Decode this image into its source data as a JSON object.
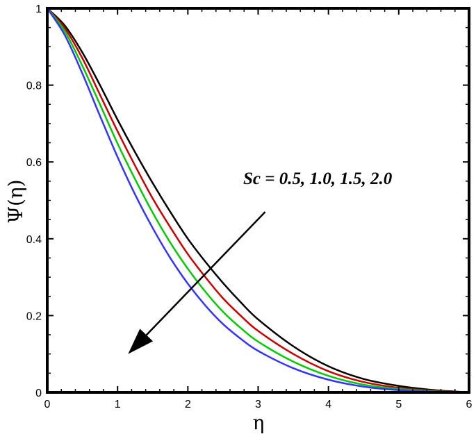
{
  "chart_data": {
    "type": "line",
    "xlabel": "η",
    "ylabel": "Ψ(η)",
    "xlim": [
      0,
      6
    ],
    "ylim": [
      0,
      1
    ],
    "xticks": [
      0,
      1,
      2,
      3,
      4,
      5,
      6
    ],
    "yticks": [
      0,
      0.2,
      0.4,
      0.6,
      0.8,
      1
    ],
    "ytick_labels": [
      "0",
      "0.2",
      "0.4",
      "0.6",
      "0.8",
      "1"
    ],
    "grid": false,
    "annotation": {
      "text": "Sc = 0.5, 1.0, 1.5, 2.0",
      "arrow_from": [
        3.1,
        0.47
      ],
      "arrow_to": [
        1.15,
        0.1
      ]
    },
    "x": [
      0,
      0.25,
      0.5,
      0.75,
      1.0,
      1.25,
      1.5,
      1.75,
      2.0,
      2.25,
      2.5,
      2.75,
      3.0,
      3.5,
      4.0,
      4.5,
      5.0,
      5.5,
      6.0
    ],
    "series": [
      {
        "color": "#000000",
        "values": [
          1.0,
          0.955,
          0.885,
          0.8,
          0.71,
          0.625,
          0.545,
          0.47,
          0.4,
          0.34,
          0.285,
          0.235,
          0.19,
          0.12,
          0.068,
          0.035,
          0.017,
          0.006,
          0.0
        ]
      },
      {
        "color": "#cc0000",
        "values": [
          1.0,
          0.948,
          0.87,
          0.775,
          0.68,
          0.59,
          0.505,
          0.43,
          0.36,
          0.3,
          0.245,
          0.2,
          0.16,
          0.1,
          0.055,
          0.027,
          0.012,
          0.004,
          0.0
        ]
      },
      {
        "color": "#00cc00",
        "values": [
          1.0,
          0.94,
          0.85,
          0.75,
          0.648,
          0.555,
          0.468,
          0.39,
          0.322,
          0.262,
          0.21,
          0.168,
          0.132,
          0.08,
          0.043,
          0.02,
          0.009,
          0.003,
          0.0
        ]
      },
      {
        "color": "#3333ff",
        "values": [
          1.0,
          0.93,
          0.83,
          0.72,
          0.613,
          0.515,
          0.428,
          0.35,
          0.283,
          0.226,
          0.178,
          0.14,
          0.108,
          0.063,
          0.033,
          0.015,
          0.006,
          0.002,
          0.0
        ]
      }
    ]
  }
}
